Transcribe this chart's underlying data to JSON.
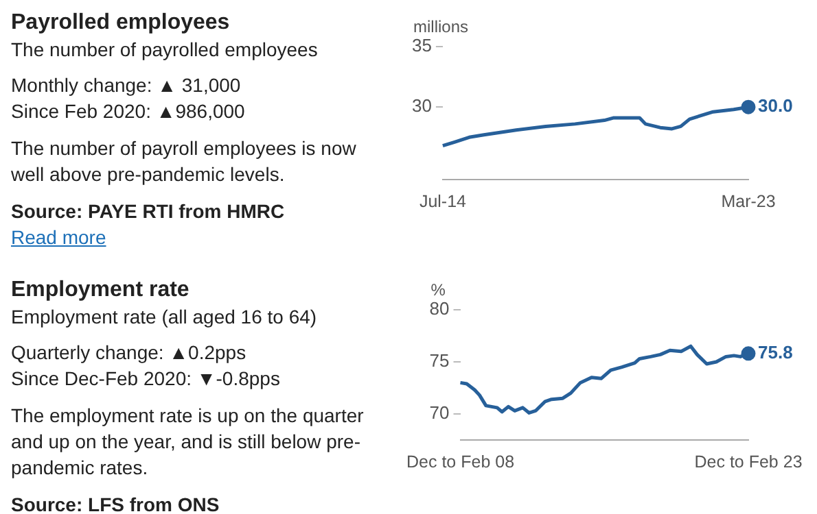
{
  "chart_data": [
    {
      "type": "other",
      "title": "Payrolled employees",
      "subtitle": "The number of payrolled employees",
      "annotations": [
        "Monthly change: ▲ 31,000",
        "Since Feb 2020: ▲986,000",
        "The number of payroll employees is now well above pre-pandemic levels.",
        "Source: PAYE RTI from HMRC",
        "Read more"
      ]
    },
    {
      "type": "line",
      "ylabel": "millions",
      "xlim": [
        "2014-07",
        "2023-03"
      ],
      "xticks": [
        {
          "value": "2014-07",
          "label": "Jul-14"
        },
        {
          "value": "2023-03",
          "label": "Mar-23"
        }
      ],
      "ylim": [
        24,
        35
      ],
      "yticks": [
        30,
        35
      ],
      "legend": false,
      "marker": "none",
      "x": [
        "2014-07",
        "2014-11",
        "2015-04",
        "2015-09",
        "2016-08",
        "2017-06",
        "2018-04",
        "2019-02",
        "2019-05",
        "2020-02",
        "2020-04",
        "2020-09",
        "2021-01",
        "2021-04",
        "2021-07",
        "2022-03",
        "2022-10",
        "2023-03"
      ],
      "series": [
        {
          "color": "#27609a",
          "values": [
            26.8,
            27.1,
            27.5,
            27.7,
            28.1,
            28.4,
            28.6,
            28.9,
            29.1,
            29.1,
            28.6,
            28.3,
            28.2,
            28.4,
            29.0,
            29.6,
            29.8,
            30.0
          ],
          "value_labels": [
            null,
            null,
            null,
            null,
            null,
            null,
            null,
            null,
            null,
            null,
            null,
            null,
            null,
            null,
            null,
            null,
            null,
            "30.0"
          ]
        }
      ]
    },
    {
      "type": "other",
      "title": "Employment rate",
      "subtitle": "Employment rate (all aged 16 to 64)",
      "annotations": [
        "Quarterly change: ▲0.2pps",
        "Since Dec-Feb 2020: ▼-0.8pps",
        "The employment rate is up on the quarter and up on the year, and is still below pre-pandemic rates.",
        "Source: LFS from ONS"
      ]
    },
    {
      "type": "line",
      "ylabel": "%",
      "xlim": [
        "2008-02",
        "2023-02"
      ],
      "xticks": [
        {
          "value": "2008-02",
          "label": "Dec to Feb 08"
        },
        {
          "value": "2023-02",
          "label": "Dec to Feb 23"
        }
      ],
      "ylim": [
        67.5,
        80
      ],
      "yticks": [
        70,
        75,
        80
      ],
      "legend": false,
      "marker": "none",
      "x": [
        "2008-02",
        "2008-06",
        "2008-11",
        "2009-02",
        "2009-06",
        "2010-01",
        "2010-04",
        "2010-08",
        "2010-12",
        "2011-05",
        "2011-09",
        "2012-01",
        "2012-07",
        "2012-11",
        "2013-06",
        "2013-11",
        "2014-05",
        "2014-12",
        "2015-06",
        "2015-12",
        "2016-07",
        "2017-03",
        "2017-06",
        "2018-01",
        "2018-07",
        "2019-01",
        "2019-08",
        "2020-02",
        "2020-06",
        "2020-12",
        "2021-06",
        "2021-12",
        "2022-05",
        "2022-09",
        "2023-02"
      ],
      "series": [
        {
          "color": "#27609a",
          "values": [
            73.0,
            72.9,
            72.3,
            71.8,
            70.8,
            70.6,
            70.2,
            70.7,
            70.3,
            70.6,
            70.1,
            70.3,
            71.2,
            71.4,
            71.5,
            72.0,
            73.0,
            73.5,
            73.4,
            74.2,
            74.5,
            74.9,
            75.3,
            75.5,
            75.7,
            76.1,
            76.0,
            76.5,
            75.7,
            74.8,
            75.0,
            75.5,
            75.6,
            75.5,
            75.8
          ],
          "value_labels": [
            null,
            null,
            null,
            null,
            null,
            null,
            null,
            null,
            null,
            null,
            null,
            null,
            null,
            null,
            null,
            null,
            null,
            null,
            null,
            null,
            null,
            null,
            null,
            null,
            null,
            null,
            null,
            null,
            null,
            null,
            null,
            null,
            null,
            null,
            "75.8"
          ]
        }
      ]
    }
  ]
}
